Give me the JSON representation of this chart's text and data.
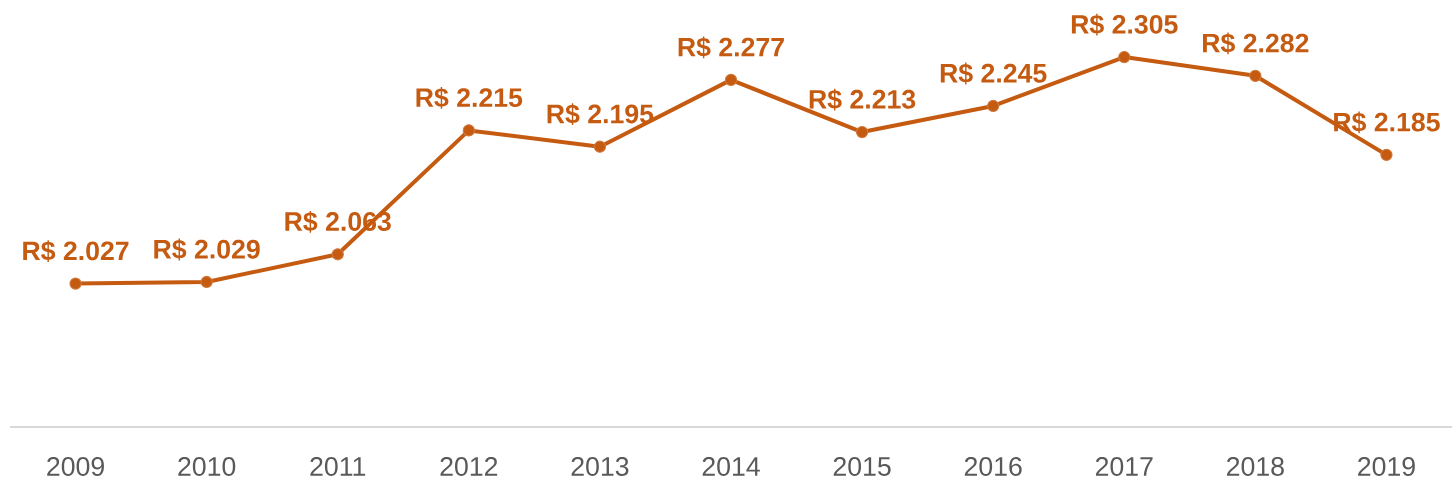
{
  "chart_data": {
    "type": "line",
    "categories": [
      "2009",
      "2010",
      "2011",
      "2012",
      "2013",
      "2014",
      "2015",
      "2016",
      "2017",
      "2018",
      "2019"
    ],
    "series": [
      {
        "color": "#c55a11",
        "values": [
          2027,
          2029,
          2063,
          2215,
          2195,
          2277,
          2213,
          2245,
          2305,
          2282,
          2185
        ],
        "value_labels": [
          "R$ 2.027",
          "R$ 2.029",
          "R$ 2.063",
          "R$ 2.215",
          "R$ 2.195",
          "R$ 2.277",
          "R$ 2.213",
          "R$ 2.245",
          "R$ 2.305",
          "R$ 2.282",
          "R$ 2.185"
        ]
      }
    ],
    "marker": "circle",
    "line_style": "solid"
  }
}
